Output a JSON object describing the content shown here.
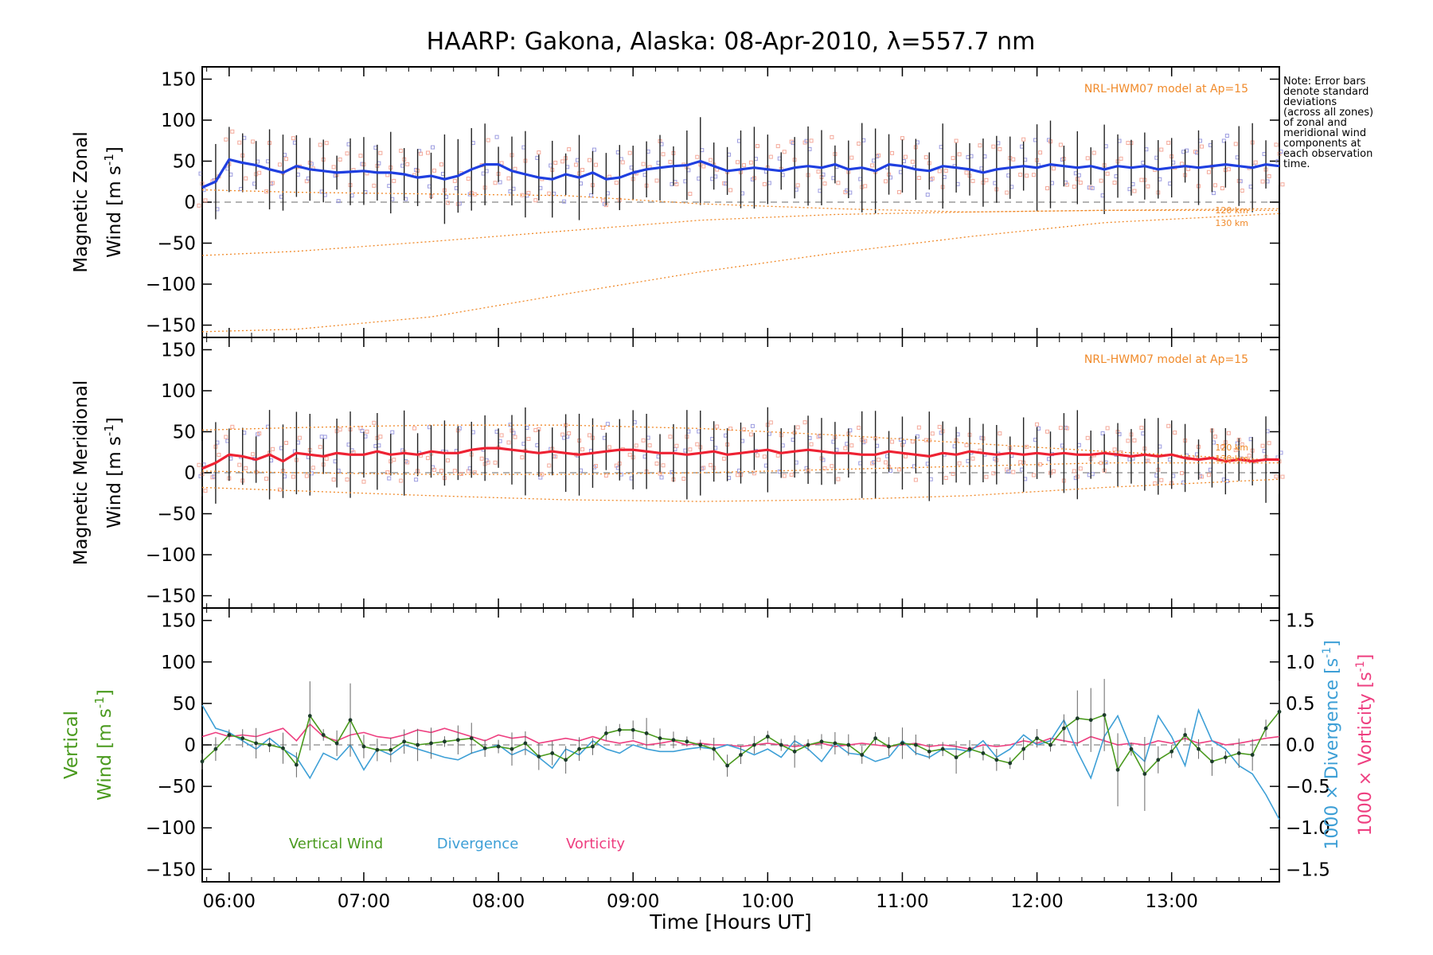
{
  "title": "HAARP: Gakona,  Alaska: 08-Apr-2010, λ=557.7 nm",
  "xlabel": "Time [Hours UT]",
  "note": [
    "Note: Error bars",
    "denote standard",
    "deviations",
    "(across all zones)",
    "of zonal and",
    "meridional wind",
    "components at",
    "each observation",
    "time."
  ],
  "colors": {
    "zonal": "#1f3fe0",
    "meridional": "#ee2233",
    "vertical": "#4a9a1e",
    "divergence": "#3d9fd6",
    "vorticity": "#ee3f80",
    "model": "#f08a2a",
    "zone_blue": "#9c9ce0",
    "zone_red": "#f4a99a"
  },
  "chart_data": [
    {
      "type": "line",
      "panel": "zonal",
      "ylabel": [
        "Magnetic Zonal",
        "Wind [m s-1]"
      ],
      "model_label": "NRL-HWM07 model at Ap=15",
      "model_alt_labels": [
        "120 km",
        "130 km"
      ],
      "ylim": [
        -165,
        165
      ],
      "yticks": [
        -150,
        -100,
        -50,
        0,
        50,
        100,
        150
      ],
      "xlim": [
        5.8,
        13.8
      ],
      "xticks": [
        "06:00",
        "07:00",
        "08:00",
        "09:00",
        "10:00",
        "11:00",
        "12:00",
        "13:00"
      ],
      "xtick_values": [
        6,
        7,
        8,
        9,
        10,
        11,
        12,
        13
      ],
      "series": [
        {
          "x": [
            5.8,
            5.9,
            6.0,
            6.1,
            6.2,
            6.3,
            6.4,
            6.5,
            6.6,
            6.7,
            6.8,
            6.9,
            7.0,
            7.1,
            7.2,
            7.3,
            7.4,
            7.5,
            7.6,
            7.7,
            7.8,
            7.9,
            8.0,
            8.1,
            8.2,
            8.3,
            8.4,
            8.5,
            8.6,
            8.7,
            8.8,
            8.9,
            9.0,
            9.1,
            9.2,
            9.3,
            9.4,
            9.5,
            9.6,
            9.7,
            9.8,
            9.9,
            10.0,
            10.1,
            10.2,
            10.3,
            10.4,
            10.5,
            10.6,
            10.7,
            10.8,
            10.9,
            11.0,
            11.1,
            11.2,
            11.3,
            11.4,
            11.5,
            11.6,
            11.7,
            11.8,
            11.9,
            12.0,
            12.1,
            12.2,
            12.3,
            12.4,
            12.5,
            12.6,
            12.7,
            12.8,
            12.9,
            13.0,
            13.1,
            13.2,
            13.3,
            13.4,
            13.5,
            13.6,
            13.7,
            13.8
          ],
          "y": [
            18,
            25,
            52,
            48,
            45,
            40,
            36,
            44,
            40,
            38,
            36,
            37,
            38,
            36,
            36,
            34,
            30,
            32,
            28,
            32,
            40,
            46,
            46,
            38,
            34,
            30,
            28,
            34,
            30,
            36,
            28,
            30,
            36,
            40,
            42,
            44,
            45,
            50,
            44,
            38,
            40,
            42,
            40,
            38,
            42,
            44,
            42,
            46,
            40,
            42,
            38,
            46,
            44,
            40,
            38,
            44,
            42,
            40,
            36,
            40,
            42,
            44,
            42,
            46,
            44,
            42,
            44,
            40,
            44,
            42,
            44,
            40,
            42,
            44,
            42,
            44,
            46,
            44,
            42,
            46,
            44
          ]
        }
      ],
      "model": [
        {
          "x": [
            5.8,
            6.5,
            7.5,
            8.5,
            9.5,
            10.5,
            11.5,
            12.5,
            13.8
          ],
          "y": [
            -65,
            -60,
            -48,
            -35,
            -22,
            -15,
            -12,
            -10,
            -10
          ]
        },
        {
          "x": [
            5.8,
            6.5,
            7.5,
            8.5,
            9.5,
            10.5,
            11.5,
            12.5,
            13.8
          ],
          "y": [
            -158,
            -155,
            -140,
            -112,
            -85,
            -62,
            -42,
            -25,
            -14
          ]
        },
        {
          "x": [
            5.8,
            6.5,
            7.5,
            8.5,
            9.5,
            10.5,
            11.5,
            12.5,
            13.8
          ],
          "y": [
            15,
            12,
            10,
            8,
            -2,
            -8,
            -12,
            -10,
            -8
          ]
        }
      ]
    },
    {
      "type": "line",
      "panel": "meridional",
      "ylabel": [
        "Magnetic Meridional",
        "Wind [m s-1]"
      ],
      "model_label": "NRL-HWM07 model at Ap=15",
      "model_alt_labels": [
        "120 km",
        "130 km"
      ],
      "ylim": [
        -165,
        165
      ],
      "yticks": [
        -150,
        -100,
        -50,
        0,
        50,
        100,
        150
      ],
      "xlim": [
        5.8,
        13.8
      ],
      "series": [
        {
          "x": [
            5.8,
            5.9,
            6.0,
            6.1,
            6.2,
            6.3,
            6.4,
            6.5,
            6.6,
            6.7,
            6.8,
            6.9,
            7.0,
            7.1,
            7.2,
            7.3,
            7.4,
            7.5,
            7.6,
            7.7,
            7.8,
            7.9,
            8.0,
            8.1,
            8.2,
            8.3,
            8.4,
            8.5,
            8.6,
            8.7,
            8.8,
            8.9,
            9.0,
            9.1,
            9.2,
            9.3,
            9.4,
            9.5,
            9.6,
            9.7,
            9.8,
            9.9,
            10.0,
            10.1,
            10.2,
            10.3,
            10.4,
            10.5,
            10.6,
            10.7,
            10.8,
            10.9,
            11.0,
            11.1,
            11.2,
            11.3,
            11.4,
            11.5,
            11.6,
            11.7,
            11.8,
            11.9,
            12.0,
            12.1,
            12.2,
            12.3,
            12.4,
            12.5,
            12.6,
            12.7,
            12.8,
            12.9,
            13.0,
            13.1,
            13.2,
            13.3,
            13.4,
            13.5,
            13.6,
            13.7,
            13.8
          ],
          "y": [
            5,
            12,
            22,
            20,
            16,
            22,
            14,
            24,
            22,
            20,
            24,
            22,
            22,
            26,
            22,
            24,
            22,
            26,
            24,
            24,
            28,
            30,
            30,
            28,
            26,
            24,
            26,
            24,
            22,
            24,
            26,
            28,
            28,
            26,
            24,
            24,
            22,
            24,
            26,
            22,
            24,
            26,
            28,
            24,
            26,
            28,
            26,
            24,
            24,
            22,
            22,
            26,
            24,
            22,
            20,
            24,
            22,
            26,
            24,
            22,
            24,
            22,
            24,
            22,
            24,
            22,
            22,
            24,
            22,
            20,
            22,
            20,
            22,
            18,
            16,
            18,
            14,
            16,
            14,
            16,
            16
          ]
        }
      ],
      "model": [
        {
          "x": [
            5.8,
            6.5,
            7.5,
            8.5,
            9.5,
            10.5,
            11.5,
            12.5,
            13.8
          ],
          "y": [
            52,
            55,
            58,
            58,
            54,
            46,
            36,
            26,
            15
          ]
        },
        {
          "x": [
            5.8,
            6.5,
            7.5,
            8.5,
            9.5,
            10.5,
            11.5,
            12.5,
            13.8
          ],
          "y": [
            -18,
            -22,
            -28,
            -33,
            -35,
            -33,
            -28,
            -18,
            -8
          ]
        },
        {
          "x": [
            5.8,
            6.5,
            7.5,
            8.5,
            9.5,
            10.5,
            11.5,
            12.5,
            13.8
          ],
          "y": [
            2,
            0,
            -2,
            -2,
            0,
            4,
            8,
            12,
            12
          ]
        }
      ]
    },
    {
      "type": "line",
      "panel": "vertical",
      "ylabel": [
        "Vertical",
        "Wind [m s-1]"
      ],
      "ylabel_right": [
        "1000 × Divergence [s-1]",
        "1000 × Vorticity [s-1]"
      ],
      "ylim": [
        -165,
        165
      ],
      "yticks": [
        -150,
        -100,
        -50,
        0,
        50,
        100,
        150
      ],
      "ylim_right": [
        -1.65,
        1.65
      ],
      "yticks_right": [
        -1.5,
        -1.0,
        -0.5,
        0.0,
        0.5,
        1.0,
        1.5
      ],
      "xlim": [
        5.8,
        13.8
      ],
      "legend": [
        "Vertical Wind",
        "Divergence",
        "Vorticity"
      ],
      "series": [
        {
          "name": "Vertical Wind",
          "x": [
            5.8,
            5.9,
            6.0,
            6.1,
            6.2,
            6.3,
            6.4,
            6.5,
            6.6,
            6.7,
            6.8,
            6.9,
            7.0,
            7.1,
            7.2,
            7.3,
            7.4,
            7.5,
            7.6,
            7.7,
            7.8,
            7.9,
            8.0,
            8.1,
            8.2,
            8.3,
            8.4,
            8.5,
            8.6,
            8.7,
            8.8,
            8.9,
            9.0,
            9.1,
            9.2,
            9.3,
            9.4,
            9.5,
            9.6,
            9.7,
            9.8,
            9.9,
            10.0,
            10.1,
            10.2,
            10.3,
            10.4,
            10.5,
            10.6,
            10.7,
            10.8,
            10.9,
            11.0,
            11.1,
            11.2,
            11.3,
            11.4,
            11.5,
            11.6,
            11.7,
            11.8,
            11.9,
            12.0,
            12.1,
            12.2,
            12.3,
            12.4,
            12.5,
            12.6,
            12.7,
            12.8,
            12.9,
            13.0,
            13.1,
            13.2,
            13.3,
            13.4,
            13.5,
            13.6,
            13.7,
            13.8
          ],
          "y": [
            -20,
            -5,
            12,
            8,
            2,
            0,
            -4,
            -24,
            35,
            12,
            2,
            30,
            -2,
            -6,
            -6,
            4,
            0,
            2,
            4,
            6,
            8,
            -4,
            -2,
            -5,
            2,
            -14,
            -10,
            -18,
            -5,
            -2,
            14,
            18,
            18,
            14,
            8,
            6,
            4,
            0,
            -5,
            -25,
            -12,
            0,
            10,
            0,
            -8,
            0,
            4,
            2,
            0,
            -12,
            8,
            -2,
            2,
            0,
            -8,
            -5,
            -15,
            -5,
            -10,
            -18,
            -22,
            -5,
            8,
            0,
            20,
            32,
            30,
            36,
            -30,
            -5,
            -35,
            -18,
            -8,
            12,
            -5,
            -20,
            -15,
            -10,
            -12,
            20,
            40
          ]
        },
        {
          "name": "Divergence",
          "x": [
            5.8,
            5.9,
            6.0,
            6.1,
            6.2,
            6.3,
            6.4,
            6.5,
            6.6,
            6.7,
            6.8,
            6.9,
            7.0,
            7.1,
            7.2,
            7.3,
            7.4,
            7.5,
            7.6,
            7.7,
            7.8,
            7.9,
            8.0,
            8.1,
            8.2,
            8.3,
            8.4,
            8.5,
            8.6,
            8.7,
            8.8,
            8.9,
            9.0,
            9.1,
            9.2,
            9.3,
            9.4,
            9.5,
            9.6,
            9.7,
            9.8,
            9.9,
            10.0,
            10.1,
            10.2,
            10.3,
            10.4,
            10.5,
            10.6,
            10.7,
            10.8,
            10.9,
            11.0,
            11.1,
            11.2,
            11.3,
            11.4,
            11.5,
            11.6,
            11.7,
            11.8,
            11.9,
            12.0,
            12.1,
            12.2,
            12.3,
            12.4,
            12.5,
            12.6,
            12.7,
            12.8,
            12.9,
            13.0,
            13.1,
            13.2,
            13.3,
            13.4,
            13.5,
            13.6,
            13.7,
            13.8
          ],
          "y": [
            0.48,
            0.2,
            0.15,
            0.05,
            -0.05,
            0.08,
            -0.05,
            -0.15,
            -0.4,
            -0.1,
            -0.18,
            0.0,
            -0.3,
            -0.05,
            -0.12,
            0.0,
            -0.05,
            -0.1,
            -0.15,
            -0.18,
            -0.1,
            -0.05,
            0.0,
            -0.12,
            -0.05,
            -0.15,
            -0.28,
            -0.05,
            -0.12,
            0.05,
            -0.05,
            -0.1,
            0.0,
            -0.05,
            -0.08,
            -0.08,
            -0.05,
            -0.03,
            -0.05,
            0.0,
            -0.05,
            -0.12,
            -0.05,
            -0.15,
            0.05,
            -0.05,
            -0.2,
            0.02,
            -0.1,
            -0.12,
            -0.2,
            -0.15,
            0.05,
            -0.1,
            -0.15,
            -0.05,
            -0.05,
            -0.08,
            0.05,
            -0.15,
            -0.05,
            0.12,
            0.0,
            0.05,
            0.3,
            -0.08,
            -0.4,
            0.1,
            0.35,
            -0.05,
            -0.2,
            0.35,
            0.1,
            -0.25,
            0.42,
            0.05,
            -0.05,
            -0.25,
            -0.35,
            -0.6,
            -0.9
          ]
        },
        {
          "name": "Vorticity",
          "x": [
            5.8,
            5.9,
            6.0,
            6.1,
            6.2,
            6.3,
            6.4,
            6.5,
            6.6,
            6.7,
            6.8,
            6.9,
            7.0,
            7.1,
            7.2,
            7.3,
            7.4,
            7.5,
            7.6,
            7.7,
            7.8,
            7.9,
            8.0,
            8.1,
            8.2,
            8.3,
            8.4,
            8.5,
            8.6,
            8.7,
            8.8,
            8.9,
            9.0,
            9.1,
            9.2,
            9.3,
            9.4,
            9.5,
            9.6,
            9.7,
            9.8,
            9.9,
            10.0,
            10.1,
            10.2,
            10.3,
            10.4,
            10.5,
            10.6,
            10.7,
            10.8,
            10.9,
            11.0,
            11.1,
            11.2,
            11.3,
            11.4,
            11.5,
            11.6,
            11.7,
            11.8,
            11.9,
            12.0,
            12.1,
            12.2,
            12.3,
            12.4,
            12.5,
            12.6,
            12.7,
            12.8,
            12.9,
            13.0,
            13.1,
            13.2,
            13.3,
            13.4,
            13.5,
            13.6,
            13.7,
            13.8
          ],
          "y": [
            0.1,
            0.15,
            0.1,
            0.12,
            0.1,
            0.15,
            0.2,
            0.05,
            0.25,
            0.1,
            0.05,
            0.12,
            0.15,
            0.1,
            0.08,
            0.12,
            0.18,
            0.15,
            0.2,
            0.15,
            0.1,
            0.05,
            0.12,
            0.08,
            0.1,
            0.02,
            0.05,
            0.08,
            0.05,
            0.1,
            0.05,
            0.02,
            0.05,
            0.0,
            0.02,
            0.05,
            0.0,
            0.02,
            0.0,
            0.0,
            -0.02,
            0.0,
            0.02,
            0.0,
            -0.02,
            0.0,
            0.02,
            -0.02,
            0.0,
            0.02,
            0.0,
            -0.02,
            0.0,
            0.02,
            -0.02,
            0.0,
            -0.02,
            -0.05,
            0.0,
            -0.02,
            0.0,
            0.05,
            0.02,
            0.08,
            0.05,
            0.02,
            0.1,
            0.05,
            0.0,
            0.02,
            0.0,
            0.05,
            0.02,
            0.08,
            0.02,
            0.05,
            0.0,
            0.02,
            0.05,
            0.08,
            0.1
          ]
        }
      ]
    }
  ]
}
